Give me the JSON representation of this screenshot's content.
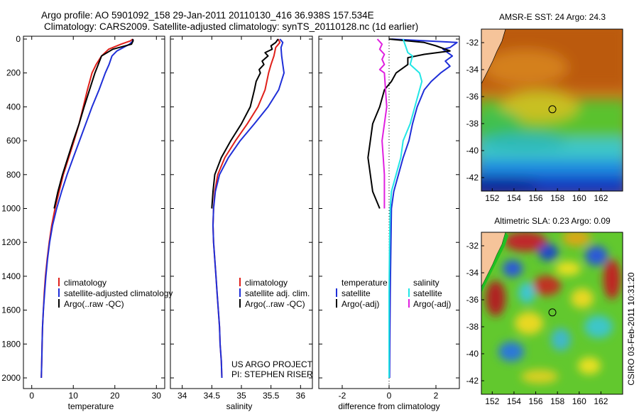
{
  "header": {
    "line1": "Argo profile: AO 5901092_158 29-Jan-2011 20110130_416 36.938S 157.534E",
    "line2": "Climatology: CARS2009. Satellite-adjusted climatology: synTS_20110128.nc (1d earlier)"
  },
  "credits": {
    "project": "US ARGO PROJECT",
    "pi": "PI: STEPHEN RISER",
    "stamp": "CSIRO 03-Feb-2011 10:31:20"
  },
  "colors": {
    "climatology": "#e0201a",
    "satellite": "#1f2fd8",
    "argo": "#000000",
    "salinity_sat": "#22e6e6",
    "salinity_argo": "#e020e0",
    "land": "#f6c49a"
  },
  "chart_data": [
    {
      "type": "line",
      "xlabel": "temperature",
      "ylabel": "",
      "xlim": [
        -2,
        32
      ],
      "ylim": [
        2050,
        0
      ],
      "xticks": [
        0,
        10,
        20,
        30
      ],
      "yticks": [
        0,
        200,
        400,
        600,
        800,
        1000,
        1200,
        1400,
        1600,
        1800,
        2000
      ],
      "legend": [
        {
          "label": "climatology",
          "color": "#e0201a"
        },
        {
          "label": "satellite-adjusted climatology",
          "color": "#1f2fd8"
        },
        {
          "label": "Argo(..raw -QC)",
          "color": "#000000"
        }
      ],
      "series": [
        {
          "color": "#e0201a",
          "points": [
            [
              24.3,
              0
            ],
            [
              23.8,
              10
            ],
            [
              21.5,
              30
            ],
            [
              18.5,
              60
            ],
            [
              16.8,
              100
            ],
            [
              15.5,
              150
            ],
            [
              14.5,
              200
            ],
            [
              13.4,
              300
            ],
            [
              12.4,
              400
            ],
            [
              11.4,
              500
            ],
            [
              10.2,
              600
            ],
            [
              8.9,
              700
            ],
            [
              7.6,
              800
            ],
            [
              6.6,
              900
            ],
            [
              5.6,
              1000
            ],
            [
              4.8,
              1100
            ],
            [
              4.2,
              1200
            ],
            [
              3.7,
              1300
            ],
            [
              3.3,
              1400
            ],
            [
              3.0,
              1500
            ],
            [
              2.8,
              1600
            ],
            [
              2.6,
              1700
            ],
            [
              2.5,
              1800
            ],
            [
              2.4,
              1900
            ],
            [
              2.3,
              2000
            ]
          ]
        },
        {
          "color": "#1f2fd8",
          "points": [
            [
              24.4,
              0
            ],
            [
              24.2,
              15
            ],
            [
              23.5,
              30
            ],
            [
              20.5,
              70
            ],
            [
              19.3,
              100
            ],
            [
              18.6,
              150
            ],
            [
              17.7,
              200
            ],
            [
              16.2,
              300
            ],
            [
              14.5,
              400
            ],
            [
              13.0,
              500
            ],
            [
              11.5,
              600
            ],
            [
              10.0,
              700
            ],
            [
              8.5,
              800
            ],
            [
              7.2,
              900
            ],
            [
              6.0,
              1000
            ],
            [
              5.0,
              1100
            ],
            [
              4.3,
              1200
            ],
            [
              3.8,
              1300
            ],
            [
              3.4,
              1400
            ],
            [
              3.1,
              1500
            ],
            [
              2.8,
              1600
            ],
            [
              2.6,
              1700
            ],
            [
              2.5,
              1800
            ],
            [
              2.4,
              1900
            ],
            [
              2.3,
              2000
            ]
          ]
        },
        {
          "color": "#000000",
          "points": [
            [
              24.3,
              0
            ],
            [
              24.4,
              10
            ],
            [
              24.0,
              30
            ],
            [
              19.5,
              60
            ],
            [
              16.8,
              100
            ],
            [
              16.0,
              150
            ],
            [
              15.2,
              200
            ],
            [
              13.9,
              300
            ],
            [
              12.6,
              400
            ],
            [
              11.4,
              500
            ],
            [
              10.0,
              600
            ],
            [
              8.7,
              700
            ],
            [
              7.4,
              800
            ],
            [
              6.3,
              900
            ],
            [
              5.4,
              1000
            ]
          ]
        }
      ]
    },
    {
      "type": "line",
      "xlabel": "salinity",
      "ylabel": "",
      "xlim": [
        33.8,
        36.2
      ],
      "ylim": [
        2050,
        0
      ],
      "xticks": [
        34,
        34.5,
        35,
        35.5,
        36
      ],
      "yticks": [],
      "legend": [
        {
          "label": "climatology",
          "color": "#e0201a"
        },
        {
          "label": "satellite adj. clim.",
          "color": "#1f2fd8"
        },
        {
          "label": "Argo(..raw -QC)",
          "color": "#000000"
        }
      ],
      "series": [
        {
          "color": "#e0201a",
          "points": [
            [
              35.62,
              0
            ],
            [
              35.65,
              20
            ],
            [
              35.58,
              50
            ],
            [
              35.55,
              100
            ],
            [
              35.5,
              150
            ],
            [
              35.46,
              200
            ],
            [
              35.4,
              300
            ],
            [
              35.28,
              400
            ],
            [
              35.1,
              500
            ],
            [
              34.9,
              600
            ],
            [
              34.72,
              700
            ],
            [
              34.6,
              800
            ],
            [
              34.55,
              900
            ],
            [
              34.53,
              1000
            ],
            [
              34.52,
              1100
            ],
            [
              34.53,
              1200
            ],
            [
              34.55,
              1300
            ],
            [
              34.57,
              1400
            ],
            [
              34.59,
              1500
            ],
            [
              34.61,
              1600
            ],
            [
              34.63,
              1700
            ],
            [
              34.64,
              1800
            ],
            [
              34.66,
              1900
            ],
            [
              34.67,
              2000
            ]
          ]
        },
        {
          "color": "#1f2fd8",
          "points": [
            [
              35.65,
              0
            ],
            [
              35.7,
              20
            ],
            [
              35.67,
              50
            ],
            [
              35.68,
              100
            ],
            [
              35.7,
              150
            ],
            [
              35.72,
              200
            ],
            [
              35.63,
              300
            ],
            [
              35.45,
              400
            ],
            [
              35.22,
              500
            ],
            [
              34.98,
              600
            ],
            [
              34.78,
              700
            ],
            [
              34.63,
              800
            ],
            [
              34.56,
              900
            ],
            [
              34.53,
              1000
            ],
            [
              34.52,
              1100
            ],
            [
              34.53,
              1200
            ],
            [
              34.55,
              1300
            ],
            [
              34.57,
              1400
            ],
            [
              34.59,
              1500
            ],
            [
              34.61,
              1600
            ],
            [
              34.63,
              1700
            ],
            [
              34.64,
              1800
            ],
            [
              34.66,
              1900
            ],
            [
              34.67,
              2000
            ]
          ]
        },
        {
          "color": "#000000",
          "points": [
            [
              35.62,
              0
            ],
            [
              35.58,
              20
            ],
            [
              35.5,
              40
            ],
            [
              35.52,
              60
            ],
            [
              35.4,
              80
            ],
            [
              35.45,
              100
            ],
            [
              35.35,
              130
            ],
            [
              35.38,
              150
            ],
            [
              35.3,
              180
            ],
            [
              35.32,
              200
            ],
            [
              35.25,
              250
            ],
            [
              35.22,
              300
            ],
            [
              35.15,
              400
            ],
            [
              35.0,
              500
            ],
            [
              34.82,
              600
            ],
            [
              34.66,
              700
            ],
            [
              34.55,
              800
            ],
            [
              34.52,
              900
            ],
            [
              34.5,
              1000
            ]
          ]
        }
      ]
    },
    {
      "type": "line",
      "xlabel": "difference from climatology",
      "ylabel": "",
      "xlim": [
        -3,
        3
      ],
      "ylim": [
        2050,
        0
      ],
      "xticks": [
        -2,
        0,
        2
      ],
      "yticks": [],
      "legend": [
        {
          "label": "temperature",
          "color": ""
        },
        {
          "label": "satellite",
          "color": "#1f2fd8"
        },
        {
          "label": "Argo(-adj)",
          "color": "#000000"
        },
        {
          "label": "salinity",
          "color": ""
        },
        {
          "label": "satellite",
          "color": "#22e6e6"
        },
        {
          "label": "Argo(-adj)",
          "color": "#e020e0"
        }
      ],
      "series": [
        {
          "color": "#1f2fd8",
          "points": [
            [
              0.1,
              0
            ],
            [
              2.9,
              20
            ],
            [
              2.7,
              40
            ],
            [
              2.6,
              50
            ],
            [
              2.3,
              60
            ],
            [
              2.5,
              80
            ],
            [
              2.7,
              100
            ],
            [
              2.4,
              130
            ],
            [
              2.6,
              160
            ],
            [
              2.2,
              200
            ],
            [
              1.8,
              250
            ],
            [
              1.5,
              300
            ],
            [
              1.2,
              400
            ],
            [
              1.0,
              500
            ],
            [
              0.85,
              600
            ],
            [
              0.6,
              700
            ],
            [
              0.4,
              800
            ],
            [
              0.2,
              900
            ],
            [
              0.1,
              1000
            ],
            [
              0.08,
              1200
            ],
            [
              0.05,
              1500
            ],
            [
              0.03,
              1800
            ],
            [
              0.02,
              2000
            ]
          ]
        },
        {
          "color": "#000000",
          "points": [
            [
              0,
              0
            ],
            [
              1.5,
              20
            ],
            [
              2.0,
              40
            ],
            [
              2.6,
              70
            ],
            [
              1.5,
              90
            ],
            [
              0.8,
              110
            ],
            [
              0.8,
              150
            ],
            [
              0.3,
              200
            ],
            [
              0.1,
              250
            ],
            [
              -0.2,
              300
            ],
            [
              -0.4,
              400
            ],
            [
              -0.7,
              500
            ],
            [
              -0.8,
              600
            ],
            [
              -0.9,
              700
            ],
            [
              -0.8,
              800
            ],
            [
              -0.7,
              900
            ],
            [
              -0.4,
              1000
            ]
          ]
        },
        {
          "color": "#22e6e6",
          "points": [
            [
              0.6,
              0
            ],
            [
              0.7,
              40
            ],
            [
              0.8,
              80
            ],
            [
              1.0,
              100
            ],
            [
              0.9,
              150
            ],
            [
              1.3,
              200
            ],
            [
              1.4,
              250
            ],
            [
              1.3,
              300
            ],
            [
              1.1,
              400
            ],
            [
              0.9,
              500
            ],
            [
              0.6,
              600
            ],
            [
              0.5,
              700
            ],
            [
              0.3,
              800
            ],
            [
              0.1,
              900
            ],
            [
              0.05,
              1000
            ],
            [
              0.02,
              1200
            ],
            [
              0.0,
              1500
            ],
            [
              0.0,
              2000
            ]
          ]
        },
        {
          "color": "#e020e0",
          "points": [
            [
              -0.5,
              0
            ],
            [
              -0.3,
              30
            ],
            [
              -0.4,
              60
            ],
            [
              -0.2,
              90
            ],
            [
              -0.3,
              120
            ],
            [
              -0.2,
              150
            ],
            [
              -0.4,
              180
            ],
            [
              -0.2,
              200
            ],
            [
              -0.15,
              300
            ],
            [
              -0.1,
              400
            ],
            [
              -0.2,
              500
            ],
            [
              -0.3,
              600
            ],
            [
              -0.25,
              700
            ],
            [
              -0.2,
              800
            ],
            [
              -0.2,
              1000
            ]
          ]
        }
      ]
    },
    {
      "type": "heatmap",
      "title": "AMSR-E SST: 24 Argo: 24.3",
      "xlim": [
        151,
        164
      ],
      "ylim": [
        -43,
        -31
      ],
      "xticks": [
        152,
        154,
        156,
        158,
        160,
        162
      ],
      "yticks": [
        -32,
        -34,
        -36,
        -38,
        -40,
        -42
      ],
      "marker": {
        "lon": 157.534,
        "lat": -36.938
      }
    },
    {
      "type": "heatmap",
      "title": "Altimetric SLA: 0.23 Argo: 0.09",
      "xlim": [
        151,
        164
      ],
      "ylim": [
        -43,
        -31
      ],
      "xticks": [
        152,
        154,
        156,
        158,
        160,
        162
      ],
      "yticks": [
        -32,
        -34,
        -36,
        -38,
        -40,
        -42
      ],
      "marker": {
        "lon": 157.534,
        "lat": -36.938
      }
    }
  ]
}
